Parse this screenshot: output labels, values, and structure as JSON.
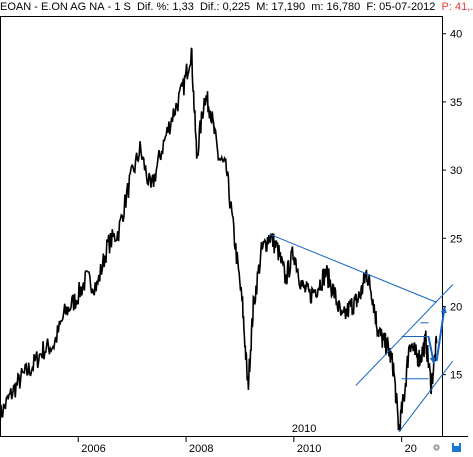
{
  "header": {
    "symbol": "EOAN",
    "name": "E.ON AG NA",
    "period": "1 S",
    "change_pct": "Dif. %: 1,33",
    "change_abs": "Dif.: 0,225",
    "max": "M: 17,190",
    "min": "m: 16,780",
    "date": "F: 05-07-2012",
    "price": "P: 41,."
  },
  "colors": {
    "price_line": "#000000",
    "trendline": "#1565c0",
    "header_text": "#000000",
    "header_price": "#e53935",
    "header_sep": "#000000",
    "axis": "#000000"
  },
  "chart_data": {
    "type": "line",
    "title": "",
    "xlabel": "",
    "ylabel": "",
    "x_ticks": [
      "2006",
      "2008",
      "2010",
      "20"
    ],
    "x_extra_label": "2010",
    "y_ticks": [
      15,
      20,
      25,
      30,
      35,
      40
    ],
    "ylim": [
      10.5,
      41.3
    ],
    "xlim": [
      2004.4,
      2012.6
    ],
    "grid": false,
    "price_series": {
      "name": "EOAN",
      "x": [
        2004.4,
        2004.6,
        2004.8,
        2005.0,
        2005.2,
        2005.4,
        2005.6,
        2005.8,
        2006.0,
        2006.2,
        2006.4,
        2006.6,
        2006.8,
        2007.0,
        2007.2,
        2007.4,
        2007.6,
        2007.8,
        2007.95,
        2008.05,
        2008.2,
        2008.3,
        2008.45,
        2008.6,
        2008.75,
        2008.9,
        2009.0,
        2009.1,
        2009.25,
        2009.4,
        2009.55,
        2009.7,
        2009.85,
        2010.0,
        2010.15,
        2010.3,
        2010.45,
        2010.6,
        2010.75,
        2010.9,
        2011.0,
        2011.1,
        2011.2,
        2011.3,
        2011.4,
        2011.5,
        2011.6,
        2011.7,
        2011.8,
        2011.9,
        2012.0,
        2012.1,
        2012.2,
        2012.3,
        2012.4,
        2012.5
      ],
      "y": [
        12.0,
        13.5,
        14.8,
        15.6,
        16.8,
        17.2,
        19.5,
        20.5,
        22.0,
        21.5,
        24.5,
        25.5,
        29.0,
        31.5,
        28.5,
        31.5,
        34.0,
        36.0,
        38.8,
        31.0,
        35.5,
        34.5,
        31.0,
        30.0,
        25.0,
        20.0,
        14.0,
        20.0,
        24.0,
        25.2,
        24.2,
        22.0,
        24.0,
        21.5,
        20.8,
        21.5,
        22.5,
        21.0,
        19.0,
        20.0,
        20.3,
        21.0,
        22.5,
        21.0,
        18.5,
        17.5,
        17.0,
        15.5,
        11.0,
        13.5,
        17.5,
        16.5,
        16.2,
        17.5,
        14.2,
        17.3
      ]
    },
    "annotations": {
      "resistance_line": {
        "x": [
          2009.4,
          2012.5
        ],
        "y": [
          25.3,
          20.3
        ]
      },
      "channel_upper": {
        "x": [
          2011.0,
          2012.8
        ],
        "y": [
          14.2,
          21.6
        ]
      },
      "channel_lower": {
        "x": [
          2011.8,
          2012.8
        ],
        "y": [
          10.8,
          16.0
        ]
      },
      "level_top": {
        "x": [
          2011.85,
          2012.35
        ],
        "y": [
          17.8,
          17.8
        ]
      },
      "level_mid": {
        "x": [
          2011.85,
          2012.35
        ],
        "y": [
          14.7,
          14.7
        ]
      },
      "level_high": {
        "x": [
          2012.2,
          2012.35
        ],
        "y": [
          18.8,
          18.8
        ]
      },
      "arrow_up": {
        "x": [
          2012.5,
          2012.65
        ],
        "y": [
          16.0,
          20.0
        ]
      },
      "arrow_down": {
        "x": [
          2012.35,
          2012.45
        ],
        "y": [
          17.8,
          15.8
        ]
      }
    }
  }
}
